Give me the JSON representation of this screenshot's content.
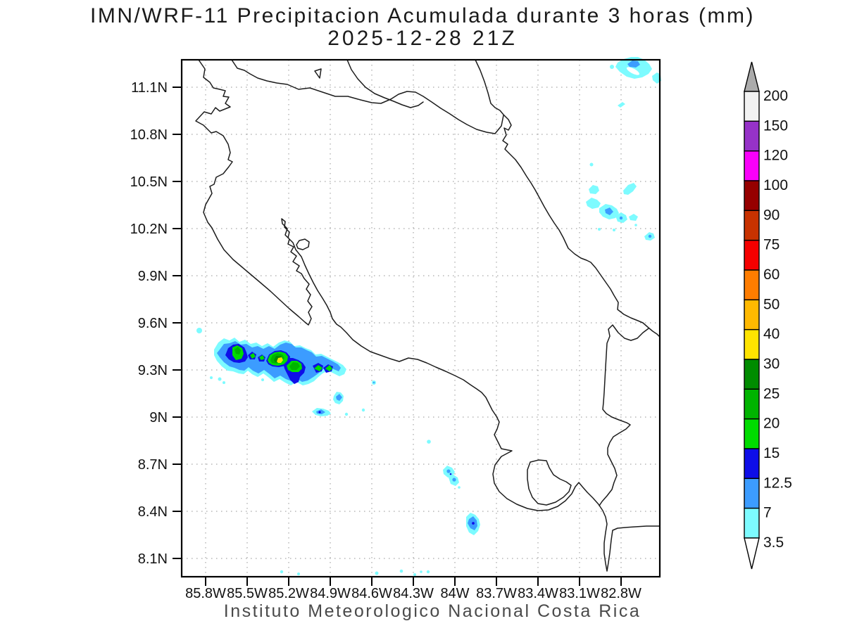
{
  "title": {
    "line1": "IMN/WRF-11 Precipitacion Acumulada durante 3 horas (mm)",
    "line2": "2025-12-28 21Z"
  },
  "caption": "Instituto Meteorologico Nacional Costa Rica",
  "axes": {
    "y": {
      "labels": [
        "11.1N",
        "10.8N",
        "10.5N",
        "10.2N",
        "9.9N",
        "9.6N",
        "9.3N",
        "9N",
        "8.7N",
        "8.4N",
        "8.1N"
      ]
    },
    "x": {
      "labels": [
        "85.8W",
        "85.5W",
        "85.2W",
        "84.9W",
        "84.6W",
        "84.3W",
        "84W",
        "83.7W",
        "83.4W",
        "83.1W",
        "82.8W"
      ]
    }
  },
  "colorbar": {
    "tick_labels_top_to_bottom": [
      "200",
      "150",
      "120",
      "100",
      "90",
      "75",
      "60",
      "50",
      "40",
      "30",
      "25",
      "20",
      "15",
      "12.5",
      "7",
      "3.5"
    ],
    "segment_colors_top_to_bottom": [
      "#F2F2F2",
      "#9632C8",
      "#FA00FA",
      "#960000",
      "#C83200",
      "#F50000",
      "#FF7D00",
      "#FFB900",
      "#FFE400",
      "#008C00",
      "#00B400",
      "#00DC00",
      "#0E0EE8",
      "#3C9CFF",
      "#7DFBFF"
    ],
    "over_arrow_color": "#ABABAB",
    "under_arrow_color": "#FFFFFF"
  },
  "chart_data": {
    "type": "map",
    "title": "IMN/WRF-11 Precipitacion Acumulada durante 3 horas (mm)",
    "valid_time": "2025-12-28 21Z",
    "units": "mm",
    "region": "Costa Rica",
    "lat_ticks": [
      11.1,
      10.8,
      10.5,
      10.2,
      9.9,
      9.6,
      9.3,
      9.0,
      8.7,
      8.4,
      8.1
    ],
    "lon_ticks_west": [
      85.8,
      85.5,
      85.2,
      84.9,
      84.6,
      84.3,
      84.0,
      83.7,
      83.4,
      83.1,
      82.8
    ],
    "shaded_levels_mm": [
      3.5,
      7,
      12.5,
      15,
      20,
      25,
      30,
      40,
      50,
      60,
      75,
      90,
      100,
      120,
      150,
      200
    ],
    "palette_low_to_high": [
      "#7DFBFF",
      "#3C9CFF",
      "#0E0EE8",
      "#00DC00",
      "#00B400",
      "#008C00",
      "#FFE400",
      "#FFB900",
      "#FF7D00",
      "#F50000",
      "#C83200",
      "#960000",
      "#FA00FA",
      "#9632C8",
      "#F2F2F2"
    ],
    "grid": true,
    "legend_position": "right",
    "features": [
      {
        "name": "main-rain-band",
        "approx_location": "9.25N-9.5N, 85.7W-84.8W offshore Pacific near Nicoya Peninsula",
        "max_level_mm": "30-40"
      },
      {
        "name": "caribbean-cluster",
        "approx_location": "10.2N-10.4N, 83.4W-83.0W",
        "max_level_mm": "7-12.5"
      },
      {
        "name": "northeast-corner-cells",
        "approx_location": "11.1N-11.2N, 83.2W-82.8W",
        "max_level_mm": "7-12.5"
      },
      {
        "name": "scattered-south-pacific-cells",
        "approx_location": "8.0N-9.1N",
        "max_level_mm": "12.5-15"
      }
    ]
  }
}
